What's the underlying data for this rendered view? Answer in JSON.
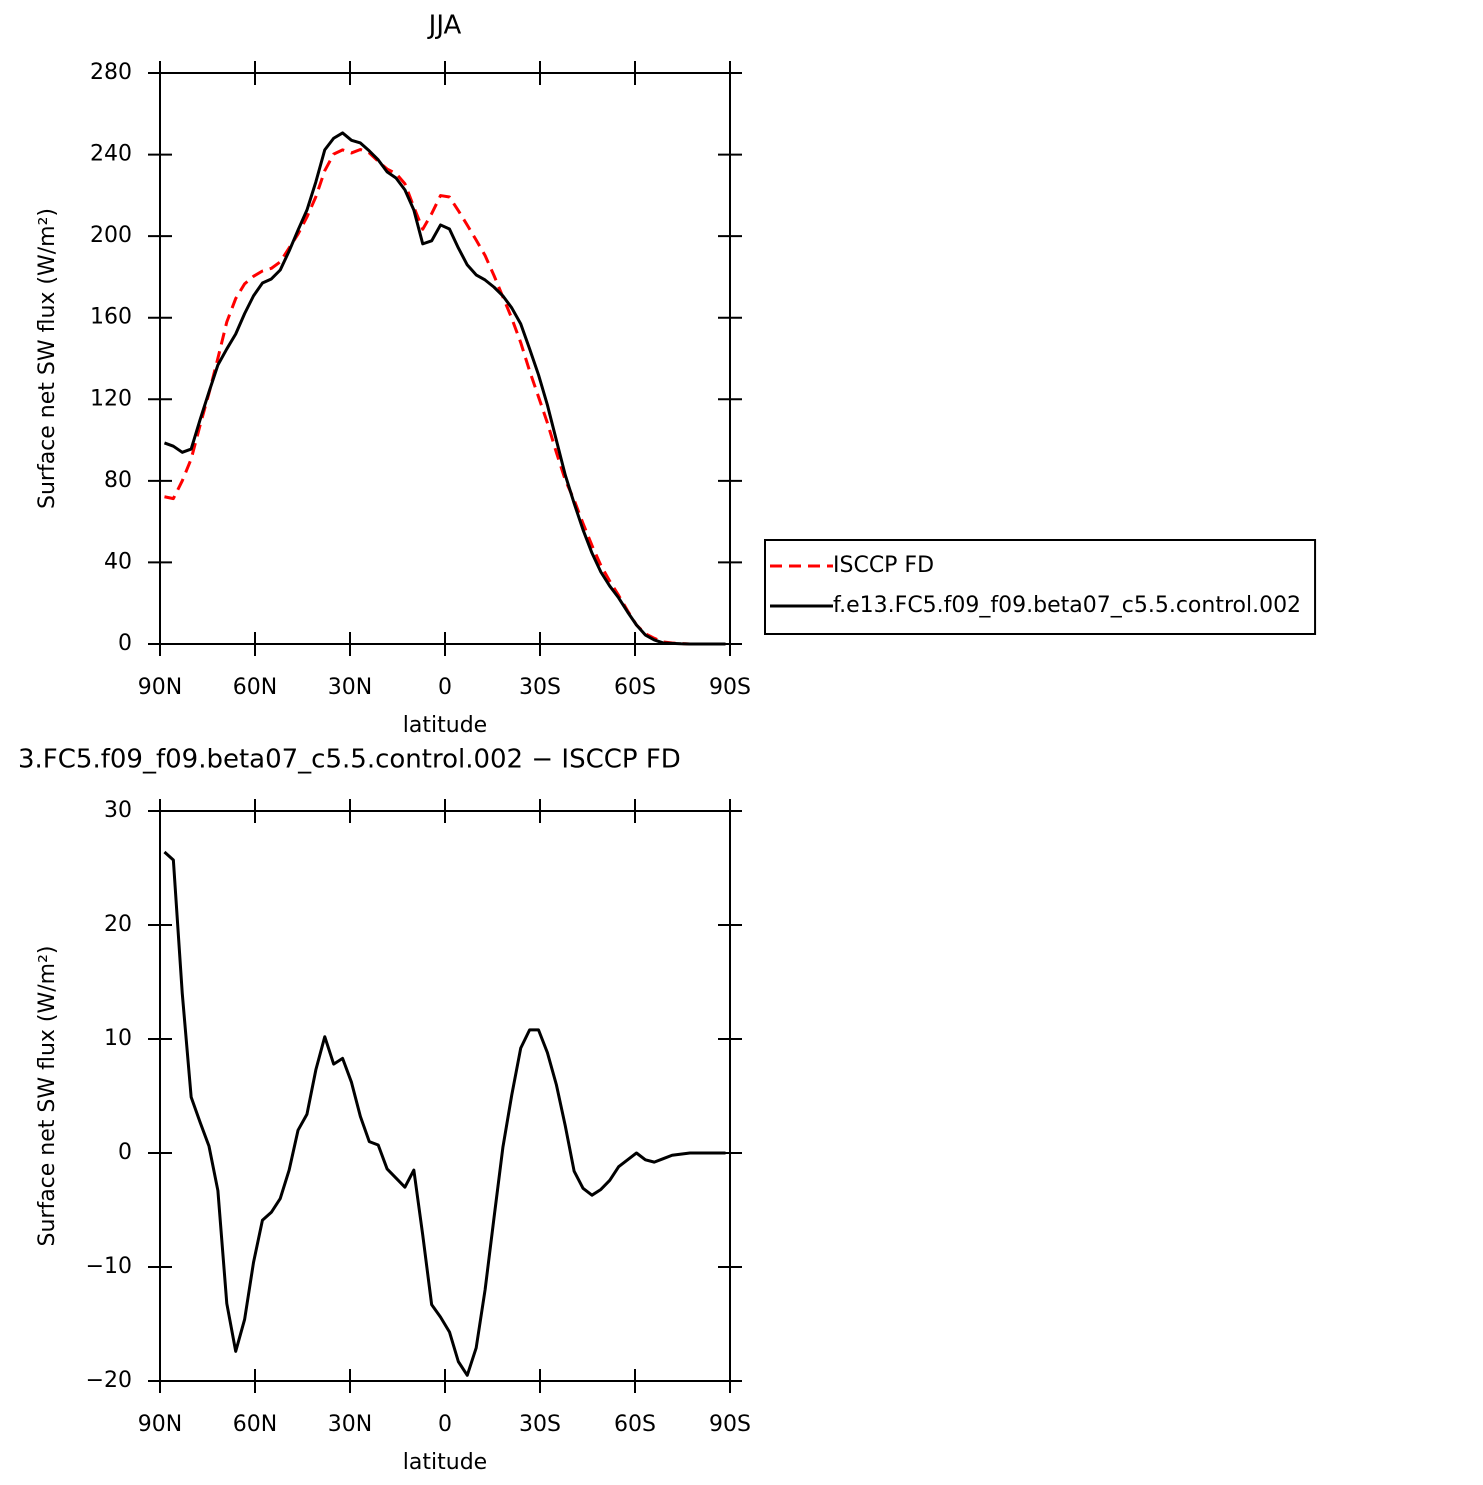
{
  "chart_data": [
    {
      "type": "line",
      "title": "JJA",
      "xlabel": "latitude",
      "ylabel": "Surface net SW flux (W/m²)",
      "x": [
        88.59,
        85.78,
        82.97,
        80.16,
        77.34,
        74.53,
        71.72,
        68.91,
        66.09,
        63.28,
        60.47,
        57.66,
        54.84,
        52.03,
        49.22,
        46.41,
        43.59,
        40.78,
        37.97,
        35.16,
        32.34,
        29.53,
        26.72,
        23.91,
        21.09,
        18.28,
        15.47,
        12.66,
        9.84,
        7.03,
        4.22,
        1.41,
        -1.41,
        -4.22,
        -7.03,
        -9.84,
        -12.66,
        -15.47,
        -18.28,
        -21.09,
        -23.91,
        -26.72,
        -29.53,
        -32.34,
        -35.16,
        -37.97,
        -40.78,
        -43.59,
        -46.41,
        -49.22,
        -52.03,
        -54.84,
        -57.66,
        -60.47,
        -63.28,
        -66.09,
        -68.91,
        -71.72,
        -74.53,
        -77.34,
        -80.16,
        -82.97,
        -85.78,
        -88.59
      ],
      "series": [
        {
          "name": "ISCCP FD",
          "color": "#ff0000",
          "dash": true,
          "values": [
            72.2,
            71.3,
            80,
            90.7,
            107.3,
            123,
            140.1,
            157.9,
            169.4,
            176.6,
            180.3,
            182.9,
            184.2,
            187.4,
            194.2,
            201,
            209.4,
            219.3,
            232.1,
            240.2,
            242.3,
            240.8,
            242.5,
            240.8,
            236.7,
            232.9,
            230.7,
            225.7,
            214.3,
            203.4,
            211,
            219.9,
            219.2,
            212.5,
            205.4,
            198.1,
            190.5,
            180.7,
            170.2,
            159.7,
            147.8,
            133.9,
            121.2,
            108.4,
            94,
            80.5,
            70.6,
            59.1,
            48.3,
            38.5,
            30.8,
            23.8,
            16.3,
            9.3,
            5,
            2.8,
            1,
            0.5,
            0.2,
            0,
            0,
            0,
            0,
            0
          ]
        },
        {
          "name": "f.e13.FC5.f09_f09.beta07_c5.5.control.002",
          "color": "#000000",
          "dash": false,
          "values": [
            98.6,
            97,
            94,
            95.6,
            110,
            123.6,
            136.8,
            144.7,
            152,
            162,
            170.7,
            177,
            179,
            183.4,
            192.7,
            203,
            212.8,
            226.6,
            242.3,
            248,
            250.6,
            247,
            245.7,
            241.8,
            237.4,
            231.5,
            228.5,
            222.7,
            212.8,
            196.2,
            197.7,
            205.5,
            203.5,
            194.2,
            185.9,
            181,
            178.5,
            175,
            170.7,
            164.8,
            157,
            144.7,
            132,
            117.2,
            100,
            82.9,
            69,
            56,
            44.6,
            35.3,
            28.4,
            22.6,
            15.7,
            9.3,
            4.4,
            2,
            0.5,
            0.3,
            0.1,
            0,
            0,
            0,
            0,
            0
          ]
        }
      ],
      "xlim": [
        90,
        -90
      ],
      "xticks": [
        {
          "value": 90,
          "label": "90N"
        },
        {
          "value": 60,
          "label": "60N"
        },
        {
          "value": 30,
          "label": "30N"
        },
        0,
        {
          "value": -30,
          "label": "30S"
        },
        {
          "value": -60,
          "label": "60S"
        },
        {
          "value": -90,
          "label": "90S"
        }
      ],
      "ylim": [
        0,
        280
      ],
      "yticks": [
        0,
        40,
        80,
        120,
        160,
        200,
        240,
        280
      ],
      "legend": "right"
    },
    {
      "type": "line",
      "title": "3.FC5.f09_f09.beta07_c5.5.control.002 − ISCCP FD",
      "xlabel": "latitude",
      "ylabel": "Surface net SW flux (W/m²)",
      "x": [
        88.59,
        85.78,
        82.97,
        80.16,
        77.34,
        74.53,
        71.72,
        68.91,
        66.09,
        63.28,
        60.47,
        57.66,
        54.84,
        52.03,
        49.22,
        46.41,
        43.59,
        40.78,
        37.97,
        35.16,
        32.34,
        29.53,
        26.72,
        23.91,
        21.09,
        18.28,
        15.47,
        12.66,
        9.84,
        7.03,
        4.22,
        1.41,
        -1.41,
        -4.22,
        -7.03,
        -9.84,
        -12.66,
        -15.47,
        -18.28,
        -21.09,
        -23.91,
        -26.72,
        -29.53,
        -32.34,
        -35.16,
        -37.97,
        -40.78,
        -43.59,
        -46.41,
        -49.22,
        -52.03,
        -54.84,
        -57.66,
        -60.47,
        -63.28,
        -66.09,
        -68.91,
        -71.72,
        -74.53,
        -77.34,
        -80.16,
        -82.97,
        -85.78,
        -88.59
      ],
      "series": [
        {
          "color": "#000000",
          "values": [
            26.4,
            25.7,
            14,
            4.9,
            2.7,
            0.6,
            -3.3,
            -13.2,
            -17.4,
            -14.6,
            -9.6,
            -5.9,
            -5.2,
            -4,
            -1.5,
            2,
            3.4,
            7.3,
            10.2,
            7.8,
            8.3,
            6.2,
            3.2,
            1,
            0.7,
            -1.4,
            -2.2,
            -3,
            -1.5,
            -7.2,
            -13.3,
            -14.4,
            -15.7,
            -18.3,
            -19.5,
            -17.1,
            -12,
            -5.7,
            0.5,
            5.1,
            9.2,
            10.8,
            10.8,
            8.8,
            6,
            2.4,
            -1.6,
            -3.1,
            -3.7,
            -3.2,
            -2.4,
            -1.2,
            -0.6,
            0,
            -0.6,
            -0.8,
            -0.5,
            -0.2,
            -0.1,
            0,
            0,
            0,
            0,
            0
          ]
        }
      ],
      "xlim": [
        90,
        -90
      ],
      "xticks": [
        {
          "value": 90,
          "label": "90N"
        },
        {
          "value": 60,
          "label": "60N"
        },
        {
          "value": 30,
          "label": "30N"
        },
        0,
        {
          "value": -30,
          "label": "30S"
        },
        {
          "value": -60,
          "label": "60S"
        },
        {
          "value": -90,
          "label": "90S"
        }
      ],
      "ylim": [
        -20,
        30
      ],
      "yticks": [
        {
          "value": -20,
          "label": "−20"
        },
        {
          "value": -10,
          "label": "−10"
        },
        0,
        10,
        20,
        30
      ]
    }
  ]
}
